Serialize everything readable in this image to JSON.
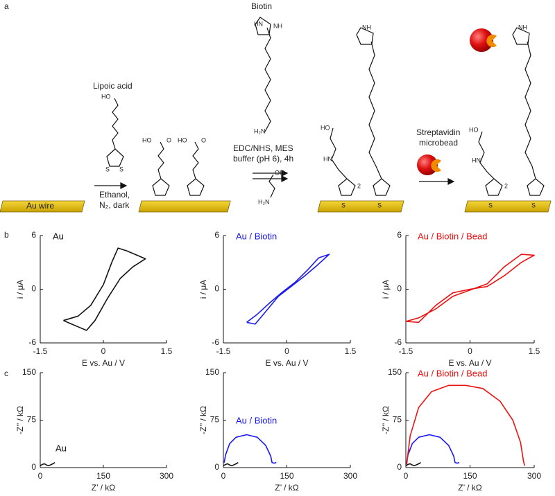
{
  "scheme": {
    "panel_a": "a",
    "panel_b": "b",
    "panel_c": "c",
    "biotin": "Biotin",
    "lipoic_acid": "Lipoic acid",
    "au_wire": "Au wire",
    "step1": [
      "Ethanol,",
      "N₂, dark"
    ],
    "step2": [
      "EDC/NHS, MES",
      "buffer (pH 6), 4h"
    ],
    "step3": [
      "Streptavidin",
      "microbead"
    ],
    "atoms": {
      "ho": "HO",
      "oh": "OH",
      "o": "O",
      "s": "S",
      "hn": "HN",
      "nh": "NH",
      "h2n": "H₂N",
      "n2": "2"
    }
  },
  "chart_data": [
    {
      "type": "line",
      "xlabel": "E vs. Au / V",
      "ylabel": "i / μA",
      "xlim": [
        -1.5,
        1.5
      ],
      "ylim": [
        -6,
        6
      ],
      "xticks": [
        -1.5,
        0,
        1.5
      ],
      "yticks": [
        -6,
        0,
        6
      ],
      "series": [
        {
          "name": "Au",
          "color": "#111111",
          "x": [
            -0.95,
            -0.6,
            -0.3,
            0,
            0.2,
            0.35,
            0.55,
            0.8,
            1.0,
            0.7,
            0.4,
            0.1,
            -0.2,
            -0.4,
            -0.6,
            -0.8,
            -0.95
          ],
          "values": [
            -3.5,
            -3.0,
            -1.8,
            0.5,
            3.0,
            4.6,
            4.3,
            3.8,
            3.4,
            2.5,
            1.2,
            -1.0,
            -3.5,
            -4.6,
            -4.2,
            -3.8,
            -3.5
          ]
        }
      ]
    },
    {
      "type": "line",
      "xlabel": "E vs. Au / V",
      "ylabel": "i / μA",
      "xlim": [
        -1.5,
        1.5
      ],
      "ylim": [
        -6,
        6
      ],
      "xticks": [
        -1.5,
        0,
        1.5
      ],
      "yticks": [
        -6,
        0,
        6
      ],
      "series": [
        {
          "name": "Au / Biotin",
          "color": "#1a1aee",
          "x": [
            -0.95,
            -0.7,
            -0.4,
            -0.1,
            0.2,
            0.5,
            0.75,
            1.0,
            0.7,
            0.4,
            0.1,
            -0.2,
            -0.5,
            -0.75,
            -0.95
          ],
          "values": [
            -3.7,
            -2.8,
            -1.5,
            -0.3,
            0.8,
            2.2,
            3.5,
            3.9,
            2.6,
            1.4,
            0.3,
            -0.8,
            -2.5,
            -3.9,
            -3.7
          ]
        }
      ]
    },
    {
      "type": "line",
      "xlabel": "E vs. Au / V",
      "ylabel": "i / μA",
      "xlim": [
        -1.5,
        1.5
      ],
      "ylim": [
        -6,
        6
      ],
      "xticks": [
        -1.5,
        0,
        1.5
      ],
      "yticks": [
        -6,
        0,
        6
      ],
      "series": [
        {
          "name": "Au / Biotin / Bead",
          "color": "#ee1111",
          "x": [
            -1.5,
            -1.2,
            -0.8,
            -0.4,
            0,
            0.4,
            0.8,
            1.2,
            1.5,
            1.2,
            0.8,
            0.4,
            0,
            -0.4,
            -0.8,
            -1.2,
            -1.5
          ],
          "values": [
            -3.6,
            -3.2,
            -2.2,
            -0.8,
            -0.1,
            0.6,
            2.5,
            3.9,
            3.8,
            3.0,
            1.5,
            0.3,
            0,
            -0.4,
            -1.8,
            -3.7,
            -3.6
          ]
        }
      ]
    },
    {
      "type": "line",
      "xlabel": "Z’ / kΩ",
      "ylabel": "-Z’’ / kΩ",
      "xlim": [
        0,
        300
      ],
      "ylim": [
        0,
        150
      ],
      "xticks": [
        0,
        150,
        300
      ],
      "yticks": [
        0,
        75,
        150
      ],
      "series": [
        {
          "name": "Au",
          "color": "#111111",
          "x": [
            0,
            5,
            10,
            15,
            20,
            30,
            35
          ],
          "values": [
            3,
            5,
            6,
            4,
            3,
            6,
            8
          ]
        }
      ]
    },
    {
      "type": "line",
      "xlabel": "Z’ / kΩ",
      "ylabel": "-Z’’ / kΩ",
      "xlim": [
        0,
        300
      ],
      "ylim": [
        0,
        150
      ],
      "xticks": [
        0,
        150,
        300
      ],
      "yticks": [
        0,
        75,
        150
      ],
      "series": [
        {
          "color": "#111111",
          "x": [
            0,
            5,
            10,
            15,
            20,
            30,
            35
          ],
          "values": [
            3,
            5,
            6,
            4,
            3,
            6,
            8
          ]
        },
        {
          "name": "Au / Biotin",
          "color": "#1a1aee",
          "x": [
            2,
            5,
            15,
            30,
            55,
            80,
            100,
            112,
            115,
            120,
            125
          ],
          "values": [
            8,
            20,
            38,
            48,
            52,
            48,
            35,
            18,
            8,
            7,
            8
          ]
        }
      ]
    },
    {
      "type": "line",
      "xlabel": "Z’ / kΩ",
      "ylabel": "-Z’’ / kΩ",
      "xlim": [
        0,
        300
      ],
      "ylim": [
        0,
        150
      ],
      "xticks": [
        0,
        150,
        300
      ],
      "yticks": [
        0,
        75,
        150
      ],
      "series": [
        {
          "color": "#111111",
          "x": [
            0,
            5,
            10,
            15,
            20,
            30,
            35
          ],
          "values": [
            3,
            5,
            6,
            4,
            3,
            6,
            8
          ]
        },
        {
          "color": "#1a1aee",
          "x": [
            2,
            5,
            15,
            30,
            55,
            80,
            100,
            112,
            115,
            120,
            125
          ],
          "values": [
            8,
            20,
            38,
            48,
            52,
            48,
            35,
            18,
            8,
            7,
            8
          ]
        },
        {
          "name": "Au / Biotin / Bead",
          "color": "#ee1111",
          "x": [
            2,
            10,
            30,
            60,
            100,
            140,
            180,
            220,
            250,
            268,
            275,
            278
          ],
          "values": [
            5,
            50,
            95,
            120,
            130,
            130,
            125,
            105,
            75,
            40,
            10,
            3
          ]
        }
      ]
    }
  ]
}
